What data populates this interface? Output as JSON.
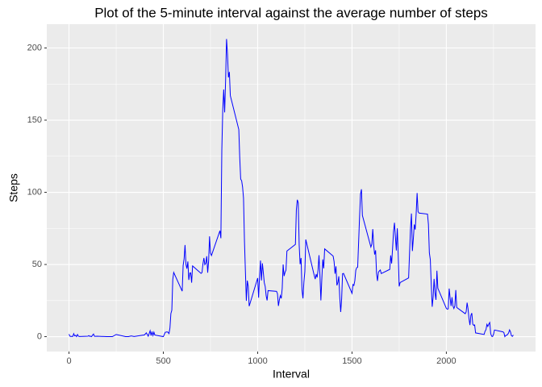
{
  "chart_data": {
    "type": "line",
    "title": "Plot of the 5-minute interval against the average number of steps",
    "x_label": "Interval",
    "y_label": "Steps",
    "x": [
      0,
      5,
      10,
      15,
      20,
      25,
      30,
      35,
      40,
      45,
      50,
      55,
      100,
      105,
      110,
      115,
      120,
      125,
      130,
      135,
      140,
      150,
      200,
      230,
      250,
      300,
      315,
      330,
      345,
      400,
      410,
      420,
      430,
      435,
      440,
      445,
      450,
      455,
      500,
      510,
      520,
      525,
      530,
      535,
      540,
      545,
      550,
      555,
      600,
      605,
      610,
      615,
      620,
      625,
      630,
      635,
      640,
      645,
      650,
      655,
      700,
      705,
      710,
      715,
      720,
      725,
      730,
      735,
      740,
      745,
      750,
      755,
      800,
      805,
      810,
      815,
      820,
      825,
      830,
      835,
      840,
      845,
      850,
      855,
      900,
      905,
      910,
      915,
      920,
      925,
      930,
      935,
      940,
      945,
      950,
      955,
      1000,
      1005,
      1010,
      1015,
      1020,
      1025,
      1030,
      1035,
      1040,
      1045,
      1050,
      1055,
      1100,
      1105,
      1110,
      1115,
      1120,
      1125,
      1130,
      1135,
      1140,
      1145,
      1150,
      1155,
      1200,
      1205,
      1210,
      1215,
      1220,
      1225,
      1230,
      1235,
      1240,
      1245,
      1250,
      1255,
      1300,
      1305,
      1310,
      1315,
      1320,
      1325,
      1330,
      1335,
      1340,
      1345,
      1350,
      1355,
      1400,
      1405,
      1410,
      1415,
      1420,
      1425,
      1430,
      1435,
      1440,
      1445,
      1450,
      1455,
      1500,
      1505,
      1510,
      1515,
      1520,
      1525,
      1530,
      1535,
      1540,
      1545,
      1550,
      1555,
      1600,
      1605,
      1610,
      1615,
      1620,
      1625,
      1630,
      1635,
      1640,
      1645,
      1650,
      1655,
      1700,
      1705,
      1710,
      1715,
      1720,
      1725,
      1730,
      1735,
      1740,
      1745,
      1750,
      1755,
      1800,
      1805,
      1810,
      1815,
      1820,
      1825,
      1830,
      1835,
      1840,
      1845,
      1850,
      1855,
      1900,
      1905,
      1910,
      1915,
      1920,
      1925,
      1930,
      1935,
      1940,
      1945,
      1950,
      1955,
      2000,
      2005,
      2010,
      2015,
      2020,
      2025,
      2030,
      2035,
      2040,
      2045,
      2050,
      2055,
      2100,
      2105,
      2110,
      2115,
      2120,
      2125,
      2130,
      2135,
      2140,
      2145,
      2150,
      2155,
      2200,
      2205,
      2210,
      2215,
      2220,
      2225,
      2230,
      2235,
      2240,
      2245,
      2250,
      2255,
      2300,
      2305,
      2310,
      2315,
      2320,
      2325,
      2330,
      2335,
      2340,
      2345,
      2350,
      2355
    ],
    "series": [
      {
        "color": "#0000ff",
        "values": [
          1.7,
          0.3,
          0.1,
          0.2,
          0.1,
          2.1,
          0.5,
          0.9,
          0,
          1.5,
          0.3,
          0.1,
          0.3,
          0.7,
          0.2,
          0.3,
          0,
          1.1,
          1.8,
          0.2,
          0.2,
          0.3,
          0,
          0,
          1.5,
          0,
          0,
          0.5,
          0.1,
          1.2,
          2.6,
          0.3,
          4.1,
          0.7,
          3.5,
          0.8,
          3.1,
          1.1,
          0,
          3,
          3.3,
          3,
          2.1,
          6,
          16,
          18.3,
          39.5,
          44.5,
          31.5,
          49.3,
          53.8,
          63.5,
          50,
          47.1,
          52.1,
          39.3,
          44,
          44.2,
          37.4,
          49,
          43.8,
          44.4,
          50.5,
          54.5,
          49.9,
          50.9,
          55.7,
          44.3,
          52.3,
          69.5,
          57.8,
          56.2,
          73.4,
          68.2,
          129.4,
          157.5,
          171.2,
          155.4,
          177.3,
          206.2,
          195.9,
          179.6,
          183.4,
          167,
          143.5,
          124,
          109.1,
          108.1,
          103.7,
          95.9,
          66.2,
          45.2,
          24.8,
          38.8,
          35,
          21.1,
          40.6,
          27,
          42.4,
          52.7,
          38.9,
          50.8,
          44.3,
          37.4,
          34.7,
          28.3,
          25.1,
          31.9,
          31.4,
          29.7,
          21.3,
          25.5,
          28.4,
          26.5,
          33.4,
          50,
          42,
          44.6,
          46,
          59.3,
          63.9,
          87.7,
          94.8,
          92.8,
          63.4,
          50.2,
          54.5,
          32.4,
          26.5,
          37.7,
          45,
          67.3,
          42.3,
          39.9,
          43.3,
          41,
          46.2,
          56.4,
          42.8,
          25.1,
          39.9,
          53.5,
          47.3,
          60.8,
          55.8,
          52,
          43.6,
          48.7,
          35.5,
          37.5,
          41.8,
          27.5,
          17.1,
          26.1,
          43.6,
          43.8,
          30,
          36.1,
          35.5,
          38.8,
          46,
          47.8,
          48.1,
          65.3,
          82.9,
          98.7,
          102.1,
          84,
          62.1,
          64.1,
          74.5,
          63.2,
          56.9,
          59.8,
          43.9,
          38.6,
          44.7,
          45.5,
          46.2,
          43.7,
          46.6,
          56.3,
          50.7,
          61.2,
          72.7,
          78.9,
          68.9,
          59.7,
          75.1,
          56.5,
          34.8,
          37.5,
          40.7,
          58,
          74.7,
          85.3,
          59.3,
          67.8,
          77.7,
          74.2,
          85.3,
          99.5,
          86.6,
          85.6,
          84.9,
          77.8,
          58,
          53.4,
          36.3,
          20.7,
          27.4,
          40,
          30.2,
          25.5,
          45.7,
          33.5,
          19.6,
          19,
          19.3,
          33.3,
          26.8,
          21.2,
          27.3,
          21.3,
          19.5,
          21.3,
          32.3,
          20.2,
          15.9,
          17.2,
          23.5,
          19.2,
          12.5,
          8,
          14.7,
          16.3,
          8.7,
          7.8,
          8.1,
          2.6,
          1.5,
          3.7,
          4.8,
          8.5,
          7.1,
          8.7,
          9.8,
          2.2,
          0.3,
          0.1,
          1.6,
          4.6,
          3.3,
          2.8,
          0,
          0.8,
          1,
          1.6,
          2.6,
          4.7,
          3.3,
          0.6,
          0.2,
          1.1
        ]
      }
    ],
    "xlim": [
      -117.75,
      2472.75
    ],
    "xticks": [
      0,
      500,
      1000,
      1500,
      2000
    ],
    "xminor": [
      250,
      750,
      1250,
      1750,
      2250
    ],
    "ylim": [
      -10.31,
      216.48
    ],
    "yticks": [
      0,
      50,
      100,
      150,
      200
    ],
    "yminor": [
      25,
      75,
      125,
      175
    ],
    "grid": true
  }
}
